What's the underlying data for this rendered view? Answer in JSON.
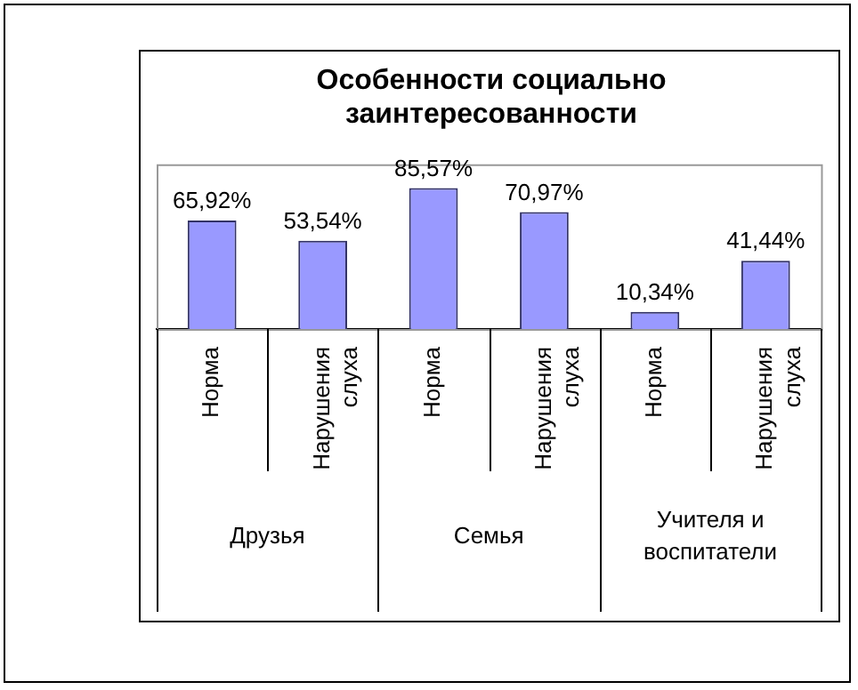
{
  "chart_data": {
    "type": "bar",
    "title": "Особенности социально заинтересованности",
    "categories": [
      "Норма",
      "Нарушения слуха",
      "Норма",
      "Нарушения слуха",
      "Норма",
      "Нарушения слуха"
    ],
    "values": [
      65.92,
      53.54,
      85.57,
      70.97,
      10.34,
      41.44
    ],
    "value_labels": [
      "65,92%",
      "53,54%",
      "85,57%",
      "70,97%",
      "10,34%",
      "41,44%"
    ],
    "color": "#9999ff",
    "tick_labels": "x",
    "grid": false,
    "legend": false,
    "annotations": [
      "Друзья",
      "Семья",
      "Учителя и воспитатели"
    ]
  }
}
